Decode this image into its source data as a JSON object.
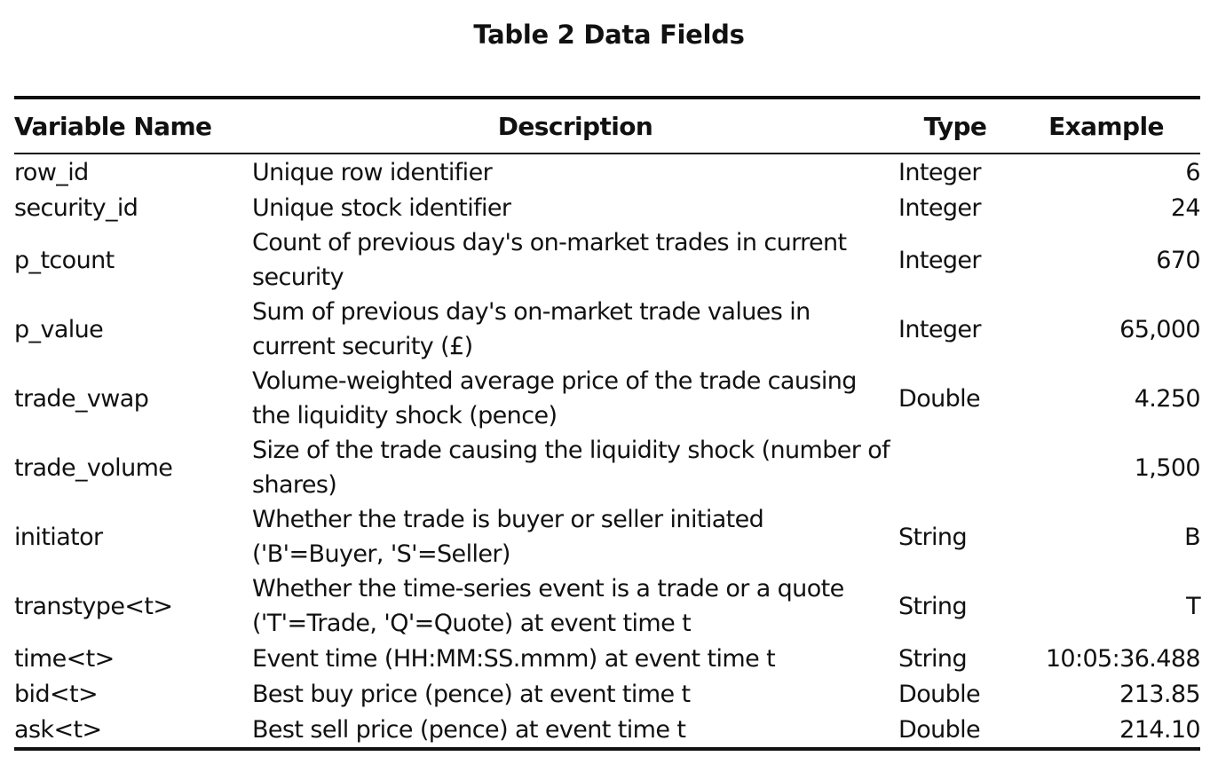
{
  "title": "Table 2 Data Fields",
  "columns": {
    "name": "Variable Name",
    "description": "Description",
    "type": "Type",
    "example": "Example"
  },
  "rows": [
    {
      "name": "row_id",
      "description": "Unique row identifier",
      "type": "Integer",
      "example": "6"
    },
    {
      "name": "security_id",
      "description": "Unique stock identifier",
      "type": "Integer",
      "example": "24"
    },
    {
      "name": "p_tcount",
      "description": "Count of previous day's on-market trades in current security",
      "type": "Integer",
      "example": "670"
    },
    {
      "name": "p_value",
      "description": "Sum of previous day's on-market trade values in current security (£)",
      "type": "Integer",
      "example": "65,000"
    },
    {
      "name": "trade_vwap",
      "description": "Volume-weighted average price of the trade causing the liquidity shock (pence)",
      "type": "Double",
      "example": "4.250"
    },
    {
      "name": "trade_volume",
      "description": "Size of the trade causing the liquidity shock (number of shares)",
      "type": "",
      "example": "1,500"
    },
    {
      "name": "initiator",
      "description": "Whether the trade is buyer or seller initiated ('B'=Buyer, 'S'=Seller)",
      "type": "String",
      "example": "B"
    },
    {
      "name": "transtype<t>",
      "description": "Whether the time-series event is a trade or a quote ('T'=Trade, 'Q'=Quote) at event time t",
      "type": "String",
      "example": "T"
    },
    {
      "name": "time<t>",
      "description": "Event time (HH:MM:SS.mmm) at event time t",
      "type": "String",
      "example": "10:05:36.488"
    },
    {
      "name": "bid<t>",
      "description": "Best buy price (pence) at event time t",
      "type": "Double",
      "example": "213.85"
    },
    {
      "name": "ask<t>",
      "description": "Best sell price (pence) at event time t",
      "type": "Double",
      "example": "214.10"
    }
  ]
}
